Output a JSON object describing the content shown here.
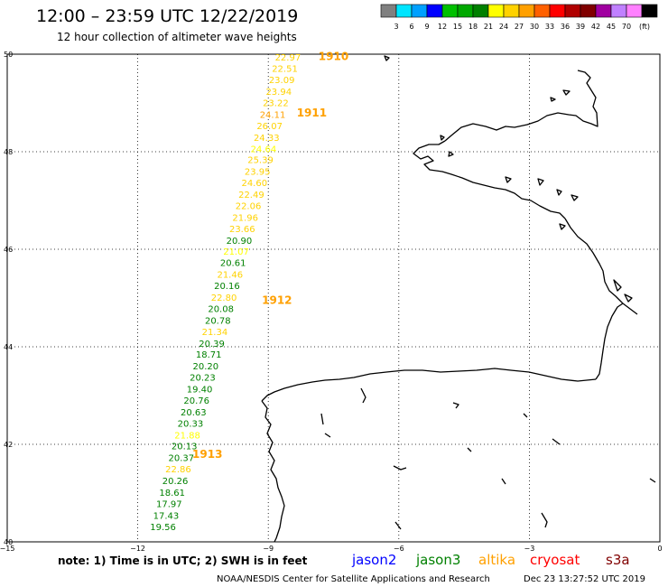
{
  "header": {
    "title": "12:00 – 23:59 UTC 12/22/2019",
    "subtitle": "12 hour collection of altimeter wave heights"
  },
  "colorbar": {
    "colors": [
      "#808080",
      "#00e5ff",
      "#00a0ff",
      "#0000ff",
      "#00c000",
      "#00a800",
      "#008000",
      "#ffff00",
      "#ffd200",
      "#ffa000",
      "#ff6000",
      "#ff0000",
      "#b00000",
      "#800000",
      "#a000a0",
      "#c080ff",
      "#ff80ff",
      "#000000"
    ],
    "labels": [
      "3",
      "6",
      "9",
      "12",
      "15",
      "18",
      "21",
      "24",
      "27",
      "30",
      "33",
      "36",
      "39",
      "42",
      "45",
      "70",
      "(ft)"
    ]
  },
  "axes": {
    "xlim": [
      -15,
      0
    ],
    "ylim": [
      40,
      50
    ],
    "x_ticks": [
      -15,
      -12,
      -9,
      -6,
      -3,
      0
    ],
    "y_ticks": [
      50,
      48,
      46,
      44,
      42,
      40
    ],
    "x_tick_labels": [
      "−15",
      "−12",
      "−9",
      "−6",
      "−3",
      "0"
    ],
    "y_tick_labels": [
      "50",
      "48",
      "46",
      "44",
      "42",
      "40"
    ],
    "grid": true
  },
  "measurements": [
    {
      "lon": -8.55,
      "lat": 49.93,
      "label": "22.97",
      "color": "#ffd200"
    },
    {
      "lon": -8.62,
      "lat": 49.69,
      "label": "22.51",
      "color": "#ffd200"
    },
    {
      "lon": -8.69,
      "lat": 49.46,
      "label": "23.09",
      "color": "#ffd200"
    },
    {
      "lon": -8.76,
      "lat": 49.22,
      "label": "23.94",
      "color": "#ffd200"
    },
    {
      "lon": -8.83,
      "lat": 48.99,
      "label": "23.22",
      "color": "#ffd200"
    },
    {
      "lon": -8.9,
      "lat": 48.75,
      "label": "24.11",
      "color": "#ffa000"
    },
    {
      "lon": -8.97,
      "lat": 48.52,
      "label": "26.07",
      "color": "#ffd200"
    },
    {
      "lon": -9.04,
      "lat": 48.28,
      "label": "24.33",
      "color": "#ffd200"
    },
    {
      "lon": -9.11,
      "lat": 48.05,
      "label": "24.64",
      "color": "#ffff00"
    },
    {
      "lon": -9.18,
      "lat": 47.82,
      "label": "25.39",
      "color": "#ffd200"
    },
    {
      "lon": -9.25,
      "lat": 47.58,
      "label": "23.95",
      "color": "#ffd200"
    },
    {
      "lon": -9.32,
      "lat": 47.35,
      "label": "24.60",
      "color": "#ffd200"
    },
    {
      "lon": -9.39,
      "lat": 47.11,
      "label": "22.49",
      "color": "#ffd200"
    },
    {
      "lon": -9.46,
      "lat": 46.88,
      "label": "22.06",
      "color": "#ffd200"
    },
    {
      "lon": -9.53,
      "lat": 46.64,
      "label": "21.96",
      "color": "#ffd200"
    },
    {
      "lon": -9.6,
      "lat": 46.41,
      "label": "23.66",
      "color": "#ffd200"
    },
    {
      "lon": -9.67,
      "lat": 46.17,
      "label": "20.90",
      "color": "#008000"
    },
    {
      "lon": -9.74,
      "lat": 45.94,
      "label": "21.07",
      "color": "#ffff00"
    },
    {
      "lon": -9.81,
      "lat": 45.71,
      "label": "20.61",
      "color": "#008000"
    },
    {
      "lon": -9.88,
      "lat": 45.47,
      "label": "21.46",
      "color": "#ffd200"
    },
    {
      "lon": -9.95,
      "lat": 45.24,
      "label": "20.16",
      "color": "#008000"
    },
    {
      "lon": -10.02,
      "lat": 45.0,
      "label": "22.80",
      "color": "#ffd200"
    },
    {
      "lon": -10.09,
      "lat": 44.77,
      "label": "20.08",
      "color": "#008000"
    },
    {
      "lon": -10.16,
      "lat": 44.53,
      "label": "20.78",
      "color": "#008000"
    },
    {
      "lon": -10.23,
      "lat": 44.3,
      "label": "21.34",
      "color": "#ffd200"
    },
    {
      "lon": -10.3,
      "lat": 44.06,
      "label": "20.39",
      "color": "#008000"
    },
    {
      "lon": -10.37,
      "lat": 43.83,
      "label": "18.71",
      "color": "#008000"
    },
    {
      "lon": -10.44,
      "lat": 43.59,
      "label": "20.20",
      "color": "#008000"
    },
    {
      "lon": -10.51,
      "lat": 43.36,
      "label": "20.23",
      "color": "#008000"
    },
    {
      "lon": -10.58,
      "lat": 43.12,
      "label": "19.40",
      "color": "#008000"
    },
    {
      "lon": -10.65,
      "lat": 42.89,
      "label": "20.76",
      "color": "#008000"
    },
    {
      "lon": -10.72,
      "lat": 42.65,
      "label": "20.63",
      "color": "#008000"
    },
    {
      "lon": -10.79,
      "lat": 42.42,
      "label": "20.33",
      "color": "#008000"
    },
    {
      "lon": -10.86,
      "lat": 42.18,
      "label": "21.88",
      "color": "#ffff00"
    },
    {
      "lon": -10.93,
      "lat": 41.95,
      "label": "20.13",
      "color": "#008000"
    },
    {
      "lon": -11.0,
      "lat": 41.71,
      "label": "20.37",
      "color": "#008000"
    },
    {
      "lon": -11.07,
      "lat": 41.48,
      "label": "22.86",
      "color": "#ffd200"
    },
    {
      "lon": -11.14,
      "lat": 41.24,
      "label": "20.26",
      "color": "#008000"
    },
    {
      "lon": -11.21,
      "lat": 41.0,
      "label": "18.61",
      "color": "#008000"
    },
    {
      "lon": -11.28,
      "lat": 40.77,
      "label": "17.97",
      "color": "#008000"
    },
    {
      "lon": -11.35,
      "lat": 40.53,
      "label": "17.43",
      "color": "#008000"
    },
    {
      "lon": -11.42,
      "lat": 40.3,
      "label": "19.56",
      "color": "#008000"
    }
  ],
  "passes": [
    {
      "lon": -7.5,
      "lat": 49.95,
      "label": "1910",
      "color": "#ffa000"
    },
    {
      "lon": -8.0,
      "lat": 48.8,
      "label": "1911",
      "color": "#ffa000"
    },
    {
      "lon": -8.8,
      "lat": 44.95,
      "label": "1912",
      "color": "#ffa000"
    },
    {
      "lon": -10.4,
      "lat": 41.8,
      "label": "1913",
      "color": "#ffa000"
    }
  ],
  "footer": {
    "note": "note: 1) Time is in UTC; 2) SWH is in feet",
    "satellites": [
      {
        "name": "jason2",
        "color": "#0000ff"
      },
      {
        "name": "jason3",
        "color": "#008000"
      },
      {
        "name": "altika",
        "color": "#ffa000"
      },
      {
        "name": "cryosat",
        "color": "#ff0000"
      },
      {
        "name": "s3a",
        "color": "#800000"
      }
    ],
    "credit": "NOAA/NESDIS Center for Satellite Applications and Research",
    "timestamp": "Dec 23 13:27:52 UTC 2019"
  }
}
